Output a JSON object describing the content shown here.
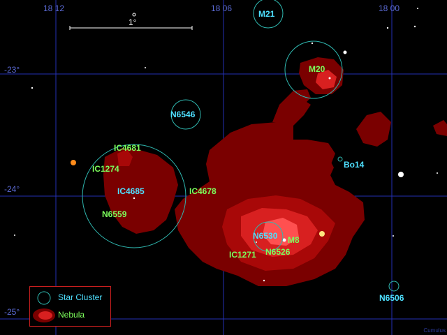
{
  "grid": {
    "ra_labels": [
      "18 12",
      "18 06",
      "18 00"
    ],
    "dec_labels": [
      "-23°",
      "-24°",
      "-25°"
    ]
  },
  "scale_bar": {
    "label": "1°"
  },
  "clusters": [
    {
      "name": "M21",
      "label_color": "#4ee0ff"
    },
    {
      "name": "M20",
      "label_color": "#7dff5c"
    },
    {
      "name": "N6546",
      "label_color": "#4ee0ff"
    },
    {
      "name": "IC4685",
      "label_color": "#4ee0ff"
    },
    {
      "name": "N6530",
      "label_color": "#4ee0ff"
    },
    {
      "name": "N6506",
      "label_color": "#4ee0ff"
    },
    {
      "name": "Bo14",
      "label_color": "#4ee0ff"
    }
  ],
  "nebulae": [
    {
      "name": "IC4681"
    },
    {
      "name": "IC1274"
    },
    {
      "name": "N6559"
    },
    {
      "name": "IC4678"
    },
    {
      "name": "M8"
    },
    {
      "name": "N6526"
    },
    {
      "name": "IC1271"
    }
  ],
  "legend": {
    "cluster_label": "Star Cluster",
    "nebula_label": "Nebula"
  },
  "colors": {
    "grid": "#2430b4",
    "cluster_circle": "#2fb8b0",
    "nebula_dark": "#7a0000",
    "nebula_mid": "#a80808",
    "nebula_bright": "#d82020",
    "nebula_core": "#ff5050",
    "legend_border": "#c81e1e"
  },
  "credit": "Cumulus"
}
